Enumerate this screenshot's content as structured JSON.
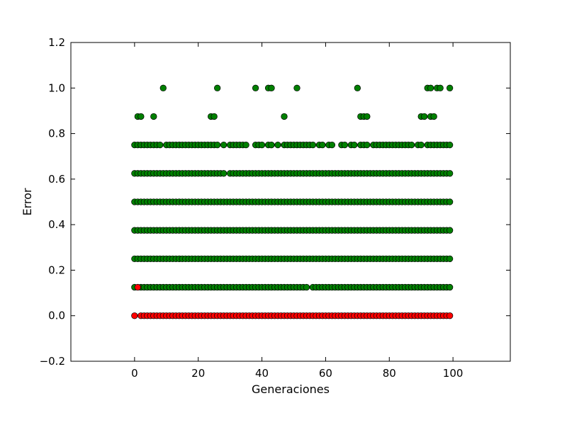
{
  "chart_data": {
    "type": "scatter",
    "title": "",
    "xlabel": "Generaciones",
    "ylabel": "Error",
    "xlim": [
      -20,
      118
    ],
    "ylim": [
      -0.2,
      1.2
    ],
    "x_ticks": [
      0,
      20,
      40,
      60,
      80,
      100
    ],
    "x_tick_labels": [
      "0",
      "20",
      "40",
      "60",
      "80",
      "100"
    ],
    "y_ticks": [
      -0.2,
      0.0,
      0.2,
      0.4,
      0.6,
      0.8,
      1.0,
      1.2
    ],
    "y_tick_labels": [
      "−0.2",
      "0.0",
      "0.2",
      "0.4",
      "0.6",
      "0.8",
      "1.0",
      "1.2"
    ],
    "grid": false,
    "series": [
      {
        "color": "#008000",
        "groups": [
          {
            "y": 1.0,
            "x": [
              9,
              26,
              38,
              42,
              43,
              51,
              70,
              92,
              93,
              95,
              96,
              99
            ]
          },
          {
            "y": 0.875,
            "x": [
              1,
              2,
              6,
              24,
              25,
              47,
              71,
              72,
              73,
              90,
              91,
              93,
              94
            ]
          },
          {
            "y": 0.75,
            "x_range": [
              0,
              99
            ],
            "exclude": [
              9,
              27,
              29,
              36,
              37,
              41,
              44,
              46,
              57,
              60,
              63,
              64,
              67,
              70,
              74,
              88,
              91
            ]
          },
          {
            "y": 0.625,
            "x_range": [
              0,
              99
            ],
            "exclude": [
              29
            ]
          },
          {
            "y": 0.5,
            "x_range": [
              0,
              99
            ],
            "exclude": []
          },
          {
            "y": 0.375,
            "x_range": [
              0,
              99
            ],
            "exclude": []
          },
          {
            "y": 0.25,
            "x_range": [
              0,
              99
            ],
            "exclude": []
          },
          {
            "y": 0.125,
            "x_range": [
              0,
              99
            ],
            "exclude": [
              1,
              55
            ]
          }
        ]
      },
      {
        "color": "#ff0000",
        "groups": [
          {
            "y": 0.125,
            "x": [
              1
            ]
          },
          {
            "y": 0.0,
            "x_range": [
              0,
              99
            ],
            "exclude": [
              1
            ]
          }
        ]
      }
    ]
  }
}
